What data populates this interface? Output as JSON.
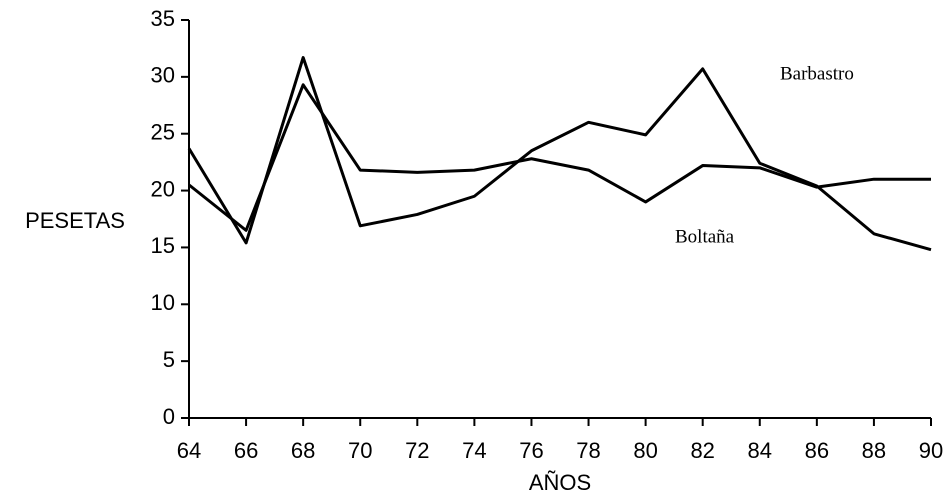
{
  "chart_data": {
    "type": "line",
    "x": [
      64,
      66,
      68,
      70,
      72,
      74,
      76,
      78,
      80,
      82,
      84,
      86,
      88,
      90
    ],
    "series": [
      {
        "name": "Barbastro",
        "color": "#000000",
        "values": [
          23.7,
          15.4,
          31.7,
          16.9,
          17.9,
          19.5,
          23.5,
          26,
          24.9,
          30.7,
          22.4,
          20.4,
          16.2,
          14.8
        ]
      },
      {
        "name": "Boltaña",
        "color": "#000000",
        "values": [
          20.5,
          16.5,
          29.3,
          21.8,
          21.6,
          21.8,
          22.8,
          21.8,
          19,
          22.2,
          22,
          20.3,
          21,
          21
        ]
      }
    ],
    "xlabel": "AÑOS",
    "ylabel": "PESETAS",
    "xlim": [
      64,
      90
    ],
    "xticks": [
      64,
      66,
      68,
      70,
      72,
      74,
      76,
      78,
      80,
      82,
      84,
      86,
      88,
      90
    ],
    "ylim": [
      0,
      35
    ],
    "yticks": [
      0,
      5,
      10,
      15,
      20,
      25,
      30,
      35
    ],
    "grid": false
  }
}
